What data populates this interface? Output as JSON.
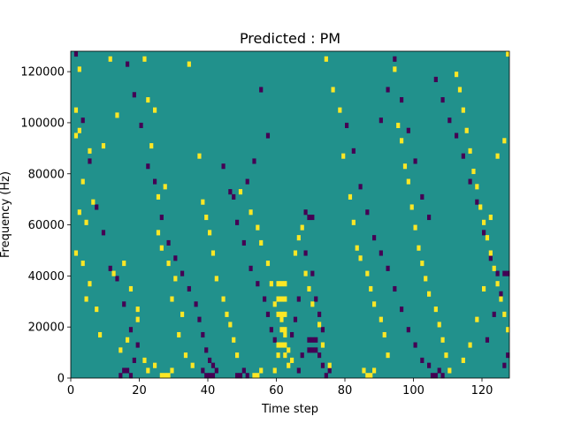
{
  "chart_data": {
    "type": "heatmap",
    "title": "Predicted : PM",
    "xlabel": "Time step",
    "ylabel": "Frequency (Hz)",
    "xlim": [
      0,
      128
    ],
    "ylim": [
      0,
      128000
    ],
    "x_ticks": [
      0,
      20,
      40,
      60,
      80,
      100,
      120
    ],
    "y_ticks": [
      0,
      20000,
      40000,
      60000,
      80000,
      100000,
      120000
    ],
    "x_tick_labels": [
      "0",
      "20",
      "40",
      "60",
      "80",
      "100",
      "120"
    ],
    "y_tick_labels": [
      "0",
      "20000",
      "40000",
      "60000",
      "80000",
      "100000",
      "120000"
    ],
    "grid": false,
    "n_time_steps": 128,
    "n_freq_bins": 64,
    "freq_bin_hz": 2000,
    "value_levels": [
      -1,
      0,
      1
    ],
    "colormap": {
      "-1": "#440154",
      "0": "#21918c",
      "1": "#fde725"
    },
    "default_value": 0,
    "high_cells": [
      [
        2,
        120000
      ],
      [
        2,
        96000
      ],
      [
        1,
        104000
      ],
      [
        1,
        94000
      ],
      [
        5,
        88000
      ],
      [
        3,
        76000
      ],
      [
        6,
        68000
      ],
      [
        2,
        64000
      ],
      [
        4,
        60000
      ],
      [
        1,
        48000
      ],
      [
        3,
        44000
      ],
      [
        5,
        36000
      ],
      [
        4,
        30000
      ],
      [
        7,
        26000
      ],
      [
        8,
        16000
      ],
      [
        11,
        124000
      ],
      [
        13,
        102000
      ],
      [
        9,
        90000
      ],
      [
        15,
        44000
      ],
      [
        12,
        40000
      ],
      [
        17,
        34000
      ],
      [
        19,
        26000
      ],
      [
        19,
        22000
      ],
      [
        16,
        14000
      ],
      [
        14,
        10000
      ],
      [
        21,
        6000
      ],
      [
        22,
        2000
      ],
      [
        24,
        4000
      ],
      [
        21,
        124000
      ],
      [
        22,
        108000
      ],
      [
        24,
        104000
      ],
      [
        23,
        90000
      ],
      [
        25,
        70000
      ],
      [
        27,
        74000
      ],
      [
        25,
        56000
      ],
      [
        26,
        50000
      ],
      [
        28,
        44000
      ],
      [
        30,
        38000
      ],
      [
        29,
        30000
      ],
      [
        32,
        24000
      ],
      [
        31,
        16000
      ],
      [
        33,
        8000
      ],
      [
        35,
        4000
      ],
      [
        34,
        122000
      ],
      [
        37,
        86000
      ],
      [
        38,
        68000
      ],
      [
        39,
        62000
      ],
      [
        40,
        56000
      ],
      [
        41,
        48000
      ],
      [
        42,
        38000
      ],
      [
        44,
        30000
      ],
      [
        45,
        24000
      ],
      [
        46,
        20000
      ],
      [
        47,
        14000
      ],
      [
        48,
        8000
      ],
      [
        49,
        72000
      ],
      [
        52,
        64000
      ],
      [
        54,
        58000
      ],
      [
        55,
        52000
      ],
      [
        57,
        44000
      ],
      [
        58,
        36000
      ],
      [
        59,
        28000
      ],
      [
        61,
        22000
      ],
      [
        62,
        16000
      ],
      [
        63,
        10000
      ],
      [
        64,
        6000
      ],
      [
        63,
        4000
      ],
      [
        65,
        48000
      ],
      [
        66,
        54000
      ],
      [
        67,
        58000
      ],
      [
        68,
        40000
      ],
      [
        69,
        34000
      ],
      [
        70,
        28000
      ],
      [
        72,
        20000
      ],
      [
        73,
        12000
      ],
      [
        75,
        4000
      ],
      [
        74,
        124000
      ],
      [
        76,
        112000
      ],
      [
        78,
        104000
      ],
      [
        79,
        86000
      ],
      [
        81,
        70000
      ],
      [
        82,
        60000
      ],
      [
        83,
        50000
      ],
      [
        84,
        46000
      ],
      [
        86,
        40000
      ],
      [
        87,
        34000
      ],
      [
        88,
        28000
      ],
      [
        90,
        22000
      ],
      [
        91,
        16000
      ],
      [
        92,
        8000
      ],
      [
        94,
        120000
      ],
      [
        95,
        98000
      ],
      [
        96,
        92000
      ],
      [
        97,
        82000
      ],
      [
        98,
        76000
      ],
      [
        99,
        66000
      ],
      [
        100,
        58000
      ],
      [
        101,
        50000
      ],
      [
        102,
        44000
      ],
      [
        103,
        38000
      ],
      [
        104,
        32000
      ],
      [
        106,
        26000
      ],
      [
        107,
        20000
      ],
      [
        108,
        14000
      ],
      [
        109,
        8000
      ],
      [
        110,
        2000
      ],
      [
        112,
        118000
      ],
      [
        113,
        112000
      ],
      [
        114,
        104000
      ],
      [
        115,
        96000
      ],
      [
        116,
        88000
      ],
      [
        117,
        80000
      ],
      [
        118,
        74000
      ],
      [
        119,
        66000
      ],
      [
        120,
        60000
      ],
      [
        121,
        54000
      ],
      [
        122,
        48000
      ],
      [
        123,
        42000
      ],
      [
        124,
        36000
      ],
      [
        125,
        30000
      ],
      [
        126,
        24000
      ],
      [
        127,
        18000
      ],
      [
        127,
        126000
      ],
      [
        126,
        92000
      ],
      [
        124,
        86000
      ],
      [
        122,
        62000
      ],
      [
        120,
        34000
      ],
      [
        118,
        22000
      ],
      [
        116,
        12000
      ],
      [
        114,
        6000
      ],
      [
        60,
        30000
      ],
      [
        61,
        30000
      ],
      [
        62,
        30000
      ],
      [
        60,
        24000
      ],
      [
        61,
        24000
      ],
      [
        62,
        24000
      ],
      [
        60,
        36000
      ],
      [
        61,
        36000
      ],
      [
        62,
        36000
      ],
      [
        61,
        18000
      ],
      [
        62,
        18000
      ],
      [
        60,
        12000
      ],
      [
        61,
        12000
      ],
      [
        62,
        12000
      ],
      [
        60,
        8000
      ],
      [
        62,
        8000
      ],
      [
        59,
        2000
      ],
      [
        26,
        0
      ],
      [
        27,
        0
      ],
      [
        28,
        0
      ],
      [
        29,
        2000
      ],
      [
        86,
        0
      ],
      [
        87,
        0
      ],
      [
        88,
        2000
      ],
      [
        85,
        2000
      ],
      [
        53,
        0
      ],
      [
        54,
        0
      ],
      [
        55,
        2000
      ]
    ],
    "low_cells": [
      [
        1,
        126000
      ],
      [
        3,
        100000
      ],
      [
        5,
        84000
      ],
      [
        7,
        66000
      ],
      [
        9,
        56000
      ],
      [
        11,
        42000
      ],
      [
        13,
        38000
      ],
      [
        15,
        28000
      ],
      [
        17,
        18000
      ],
      [
        19,
        12000
      ],
      [
        15,
        2000
      ],
      [
        16,
        2000
      ],
      [
        17,
        0
      ],
      [
        14,
        0
      ],
      [
        18,
        6000
      ],
      [
        16,
        122000
      ],
      [
        18,
        110000
      ],
      [
        20,
        98000
      ],
      [
        22,
        82000
      ],
      [
        24,
        76000
      ],
      [
        26,
        62000
      ],
      [
        28,
        52000
      ],
      [
        30,
        46000
      ],
      [
        32,
        40000
      ],
      [
        34,
        34000
      ],
      [
        36,
        28000
      ],
      [
        37,
        22000
      ],
      [
        38,
        16000
      ],
      [
        39,
        10000
      ],
      [
        40,
        6000
      ],
      [
        41,
        4000
      ],
      [
        38,
        2000
      ],
      [
        39,
        0
      ],
      [
        40,
        0
      ],
      [
        42,
        2000
      ],
      [
        41,
        0
      ],
      [
        44,
        82000
      ],
      [
        46,
        72000
      ],
      [
        48,
        60000
      ],
      [
        50,
        52000
      ],
      [
        52,
        42000
      ],
      [
        54,
        36000
      ],
      [
        56,
        30000
      ],
      [
        57,
        24000
      ],
      [
        58,
        18000
      ],
      [
        59,
        14000
      ],
      [
        48,
        0
      ],
      [
        49,
        0
      ],
      [
        50,
        2000
      ],
      [
        51,
        0
      ],
      [
        68,
        64000
      ],
      [
        69,
        62000
      ],
      [
        70,
        62000
      ],
      [
        68,
        48000
      ],
      [
        70,
        40000
      ],
      [
        71,
        30000
      ],
      [
        72,
        24000
      ],
      [
        73,
        18000
      ],
      [
        69,
        14000
      ],
      [
        70,
        14000
      ],
      [
        71,
        14000
      ],
      [
        69,
        10000
      ],
      [
        70,
        10000
      ],
      [
        71,
        10000
      ],
      [
        72,
        8000
      ],
      [
        73,
        4000
      ],
      [
        74,
        0
      ],
      [
        75,
        2000
      ],
      [
        80,
        98000
      ],
      [
        82,
        88000
      ],
      [
        84,
        74000
      ],
      [
        86,
        64000
      ],
      [
        88,
        54000
      ],
      [
        90,
        48000
      ],
      [
        92,
        42000
      ],
      [
        94,
        34000
      ],
      [
        96,
        26000
      ],
      [
        98,
        18000
      ],
      [
        100,
        12000
      ],
      [
        102,
        6000
      ],
      [
        105,
        0
      ],
      [
        106,
        0
      ],
      [
        107,
        2000
      ],
      [
        104,
        4000
      ],
      [
        108,
        0
      ],
      [
        106,
        116000
      ],
      [
        108,
        108000
      ],
      [
        110,
        100000
      ],
      [
        112,
        94000
      ],
      [
        114,
        86000
      ],
      [
        116,
        76000
      ],
      [
        118,
        68000
      ],
      [
        120,
        56000
      ],
      [
        122,
        46000
      ],
      [
        124,
        40000
      ],
      [
        126,
        40000
      ],
      [
        127,
        40000
      ],
      [
        125,
        32000
      ],
      [
        123,
        24000
      ],
      [
        121,
        14000
      ],
      [
        127,
        8000
      ],
      [
        126,
        4000
      ],
      [
        90,
        100000
      ],
      [
        92,
        112000
      ],
      [
        94,
        124000
      ],
      [
        96,
        108000
      ],
      [
        98,
        96000
      ],
      [
        100,
        84000
      ],
      [
        102,
        70000
      ],
      [
        104,
        62000
      ],
      [
        66,
        30000
      ],
      [
        65,
        22000
      ],
      [
        64,
        16000
      ],
      [
        67,
        8000
      ],
      [
        66,
        2000
      ],
      [
        55,
        112000
      ],
      [
        57,
        94000
      ],
      [
        53,
        84000
      ],
      [
        51,
        76000
      ],
      [
        47,
        70000
      ]
    ]
  }
}
